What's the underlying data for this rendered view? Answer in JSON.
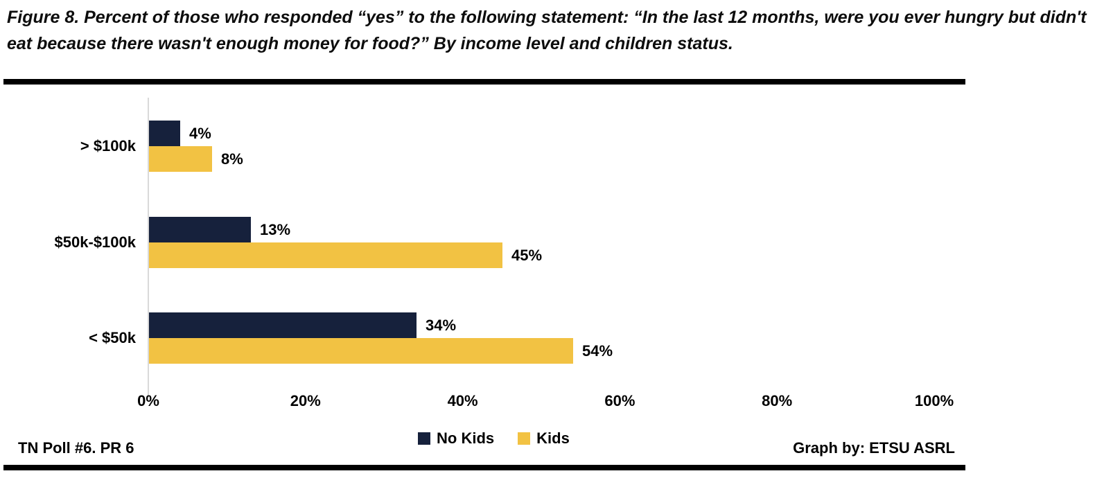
{
  "title": "Figure 8. Percent of those who responded “yes” to the following statement: “In the last 12 months, were you ever hungry but didn't eat because there wasn't enough money for food?” By income level and children status.",
  "footer": {
    "left": "TN Poll #6. PR 6",
    "right": "Graph by: ETSU ASRL"
  },
  "colors": {
    "no_kids": "#16213c",
    "kids": "#f2c243",
    "axis_line": "#d9d9d9",
    "rule": "#000000",
    "text": "#000000"
  },
  "chart_data": {
    "type": "bar",
    "orientation": "horizontal",
    "title": "Percent responding yes: hungry but didn't eat due to lack of money, by income level and children status",
    "categories": [
      "> $100k",
      "$50k-$100k",
      "< $50k"
    ],
    "series": [
      {
        "name": "No Kids",
        "color": "#16213c",
        "values": [
          4,
          13,
          34
        ]
      },
      {
        "name": "Kids",
        "color": "#f2c243",
        "values": [
          8,
          45,
          54
        ]
      }
    ],
    "data_labels": {
      "No Kids": [
        "4%",
        "13%",
        "34%"
      ],
      "Kids": [
        "8%",
        "45%",
        "54%"
      ]
    },
    "xlim": [
      0,
      100
    ],
    "x_ticks": [
      {
        "value": 0,
        "label": "0%"
      },
      {
        "value": 20,
        "label": "20%"
      },
      {
        "value": 40,
        "label": "40%"
      },
      {
        "value": 60,
        "label": "60%"
      },
      {
        "value": 80,
        "label": "80%"
      },
      {
        "value": 100,
        "label": "100%"
      }
    ],
    "xlabel": "",
    "ylabel": "",
    "grid": false,
    "legend_position": "bottom-center"
  }
}
